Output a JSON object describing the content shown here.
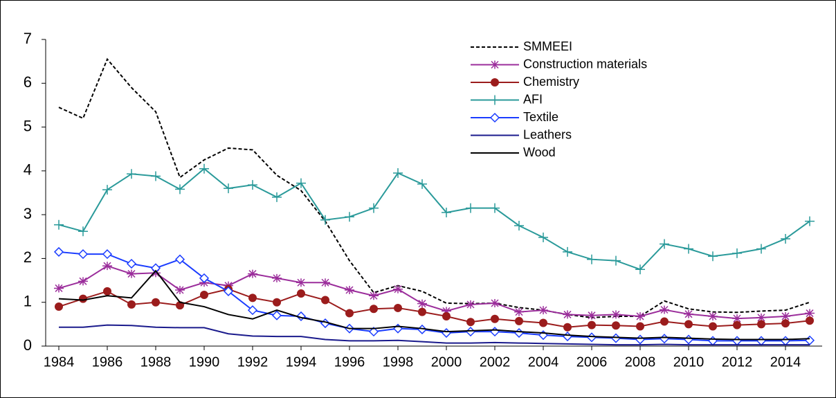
{
  "chart_data": {
    "type": "line",
    "x": [
      1984,
      1985,
      1986,
      1987,
      1988,
      1989,
      1990,
      1991,
      1992,
      1993,
      1994,
      1995,
      1996,
      1997,
      1998,
      1999,
      2000,
      2001,
      2002,
      2003,
      2004,
      2005,
      2006,
      2007,
      2008,
      2009,
      2010,
      2011,
      2012,
      2013,
      2014,
      2015
    ],
    "xlim": [
      1984,
      2015
    ],
    "xticks": [
      1984,
      1986,
      1988,
      1990,
      1992,
      1994,
      1996,
      1998,
      2000,
      2002,
      2004,
      2006,
      2008,
      2010,
      2012,
      2014
    ],
    "ylim": [
      0,
      7
    ],
    "yticks": [
      0,
      1,
      2,
      3,
      4,
      5,
      6,
      7
    ],
    "legend": "top",
    "series": [
      {
        "name": "SMMEEI",
        "color": "#000000",
        "dash": true,
        "marker": "none",
        "values": [
          5.45,
          5.2,
          6.55,
          5.9,
          5.35,
          3.85,
          4.25,
          4.52,
          4.48,
          3.9,
          3.55,
          2.85,
          1.95,
          1.22,
          1.38,
          1.25,
          0.98,
          0.97,
          0.98,
          0.88,
          0.82,
          0.72,
          0.65,
          0.68,
          0.68,
          1.03,
          0.85,
          0.78,
          0.77,
          0.8,
          0.82,
          1.0
        ]
      },
      {
        "name": "Construction materials",
        "color": "#9b2d9b",
        "dash": false,
        "marker": "star",
        "values": [
          1.32,
          1.48,
          1.83,
          1.65,
          1.67,
          1.28,
          1.45,
          1.38,
          1.65,
          1.55,
          1.45,
          1.45,
          1.28,
          1.15,
          1.3,
          0.97,
          0.8,
          0.95,
          0.98,
          0.78,
          0.82,
          0.72,
          0.7,
          0.72,
          0.68,
          0.83,
          0.73,
          0.68,
          0.63,
          0.65,
          0.68,
          0.75
        ]
      },
      {
        "name": "Chemistry",
        "color": "#9b1c1c",
        "dash": false,
        "marker": "circle",
        "values": [
          0.9,
          1.08,
          1.25,
          0.95,
          1.0,
          0.93,
          1.17,
          1.3,
          1.1,
          1.0,
          1.2,
          1.05,
          0.75,
          0.85,
          0.87,
          0.78,
          0.68,
          0.55,
          0.62,
          0.57,
          0.53,
          0.43,
          0.48,
          0.47,
          0.45,
          0.56,
          0.5,
          0.45,
          0.48,
          0.5,
          0.52,
          0.58
        ]
      },
      {
        "name": "AFI",
        "color": "#2a9a9a",
        "dash": false,
        "marker": "plus",
        "values": [
          2.77,
          2.62,
          3.57,
          3.93,
          3.88,
          3.58,
          4.05,
          3.6,
          3.68,
          3.4,
          3.72,
          2.88,
          2.95,
          3.15,
          3.95,
          3.7,
          3.05,
          3.15,
          3.15,
          2.75,
          2.48,
          2.15,
          1.98,
          1.95,
          1.75,
          2.33,
          2.22,
          2.05,
          2.12,
          2.22,
          2.45,
          2.85
        ]
      },
      {
        "name": "Textile",
        "color": "#1a3cff",
        "dash": false,
        "marker": "diamond",
        "values": [
          2.15,
          2.1,
          2.1,
          1.88,
          1.78,
          1.98,
          1.55,
          1.25,
          0.82,
          0.7,
          0.68,
          0.52,
          0.4,
          0.33,
          0.4,
          0.38,
          0.3,
          0.33,
          0.33,
          0.3,
          0.25,
          0.22,
          0.2,
          0.18,
          0.15,
          0.17,
          0.15,
          0.12,
          0.12,
          0.12,
          0.12,
          0.13
        ]
      },
      {
        "name": "Leathers",
        "color": "#1a1a8c",
        "dash": false,
        "marker": "none",
        "values": [
          0.43,
          0.43,
          0.48,
          0.47,
          0.43,
          0.42,
          0.42,
          0.28,
          0.23,
          0.22,
          0.22,
          0.15,
          0.12,
          0.12,
          0.13,
          0.1,
          0.07,
          0.07,
          0.08,
          0.07,
          0.06,
          0.05,
          0.04,
          0.03,
          0.03,
          0.04,
          0.03,
          0.03,
          0.03,
          0.03,
          0.03,
          0.03
        ]
      },
      {
        "name": "Wood",
        "color": "#000000",
        "dash": false,
        "marker": "none",
        "values": [
          1.08,
          1.05,
          1.15,
          1.1,
          1.72,
          1.0,
          0.9,
          0.72,
          0.62,
          0.82,
          0.65,
          0.55,
          0.4,
          0.4,
          0.45,
          0.4,
          0.33,
          0.35,
          0.37,
          0.33,
          0.3,
          0.25,
          0.22,
          0.2,
          0.18,
          0.2,
          0.18,
          0.16,
          0.15,
          0.15,
          0.15,
          0.17
        ]
      }
    ]
  }
}
